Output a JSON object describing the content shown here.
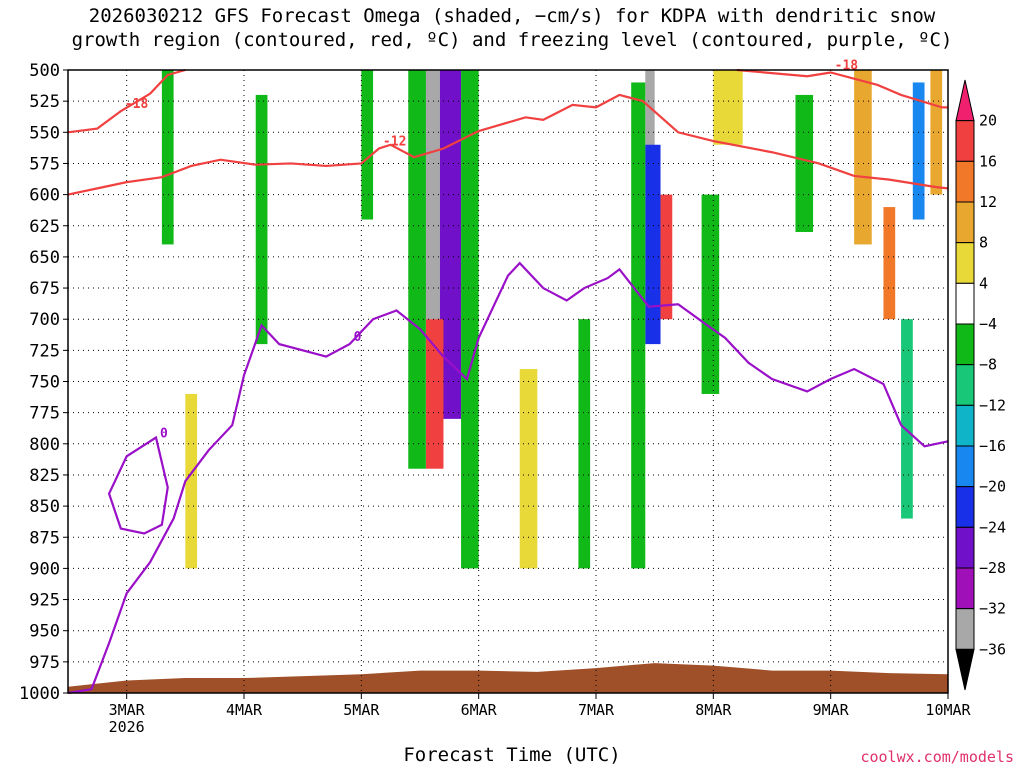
{
  "title": {
    "line1": "2026030212 GFS Forecast Omega (shaded, −cm/s) for KDPA with dendritic snow",
    "line2": "growth region (contoured, red, ºC) and freezing level (contoured, purple, ºC)"
  },
  "credit": "coolwx.com/models",
  "colors": {
    "dgz_contour": "#f04040",
    "freezing_contour": "#9a10c8",
    "terrain": "#a05028",
    "grid": "#000000"
  },
  "chart_data": {
    "type": "heatmap",
    "xlabel": "Forecast Time (UTC)",
    "ylabel": "",
    "x_range_days": [
      2.5,
      10.0
    ],
    "y_range_hpa": [
      500,
      1000
    ],
    "x_ticks": [
      {
        "x": 3,
        "label": "3MAR",
        "sublabel": "2026"
      },
      {
        "x": 4,
        "label": "4MAR",
        "sublabel": ""
      },
      {
        "x": 5,
        "label": "5MAR",
        "sublabel": ""
      },
      {
        "x": 6,
        "label": "6MAR",
        "sublabel": ""
      },
      {
        "x": 7,
        "label": "7MAR",
        "sublabel": ""
      },
      {
        "x": 8,
        "label": "8MAR",
        "sublabel": ""
      },
      {
        "x": 9,
        "label": "9MAR",
        "sublabel": ""
      },
      {
        "x": 10,
        "label": "10MAR",
        "sublabel": ""
      }
    ],
    "y_ticks": [
      "500",
      "525",
      "550",
      "575",
      "600",
      "625",
      "650",
      "675",
      "700",
      "725",
      "750",
      "775",
      "800",
      "825",
      "850",
      "875",
      "900",
      "925",
      "950",
      "975",
      "1000"
    ],
    "colorbar": {
      "levels": [
        "20",
        "16",
        "12",
        "8",
        "4",
        "−4",
        "−8",
        "−12",
        "−16",
        "−20",
        "−24",
        "−28",
        "−32",
        "−36"
      ],
      "colors": [
        "#f0206e",
        "#f04040",
        "#f07828",
        "#e8a830",
        "#e8d838",
        "#ffffff",
        "#10b818",
        "#18c878",
        "#10b4c8",
        "#1888f0",
        "#1830e8",
        "#7010c8",
        "#a010b8",
        "#a8a8a8",
        "#000000"
      ]
    },
    "contours": [
      {
        "label": "-18",
        "points": [
          [
            2.5,
            550
          ],
          [
            2.75,
            547
          ],
          [
            2.95,
            533
          ],
          [
            3.2,
            519
          ],
          [
            3.35,
            504
          ],
          [
            3.5,
            500
          ]
        ]
      },
      {
        "label": "-18",
        "points": [
          [
            8.2,
            500
          ],
          [
            8.8,
            505
          ],
          [
            9.0,
            502
          ],
          [
            9.4,
            512
          ],
          [
            9.6,
            520
          ],
          [
            9.95,
            530
          ],
          [
            10.0,
            530
          ]
        ]
      },
      {
        "label": "-12",
        "points": [
          [
            2.5,
            600
          ],
          [
            2.75,
            595
          ],
          [
            3.0,
            590
          ],
          [
            3.3,
            586
          ],
          [
            3.55,
            577
          ],
          [
            3.8,
            572
          ],
          [
            4.1,
            576
          ],
          [
            4.4,
            575
          ],
          [
            4.7,
            577
          ],
          [
            5.0,
            575
          ],
          [
            5.15,
            563
          ],
          [
            5.25,
            560
          ],
          [
            5.45,
            570
          ],
          [
            5.7,
            563
          ],
          [
            6.0,
            549
          ],
          [
            6.4,
            538
          ],
          [
            6.55,
            540
          ],
          [
            6.8,
            528
          ],
          [
            7.0,
            530
          ],
          [
            7.2,
            520
          ],
          [
            7.4,
            525
          ],
          [
            7.7,
            550
          ],
          [
            8.0,
            557
          ],
          [
            8.5,
            566
          ],
          [
            8.9,
            575
          ],
          [
            9.2,
            585
          ],
          [
            9.5,
            588
          ],
          [
            9.9,
            594
          ],
          [
            10.0,
            595
          ]
        ]
      },
      {
        "label": "0",
        "points": [
          [
            2.5,
            1000
          ],
          [
            2.7,
            997
          ],
          [
            2.85,
            960
          ],
          [
            3.0,
            920
          ],
          [
            3.2,
            895
          ],
          [
            3.4,
            860
          ],
          [
            3.5,
            830
          ],
          [
            3.7,
            805
          ],
          [
            3.9,
            785
          ],
          [
            4.0,
            745
          ],
          [
            4.15,
            705
          ],
          [
            4.3,
            720
          ],
          [
            4.5,
            725
          ],
          [
            4.7,
            730
          ],
          [
            4.9,
            720
          ],
          [
            5.1,
            700
          ],
          [
            5.3,
            693
          ],
          [
            5.5,
            708
          ],
          [
            5.7,
            730
          ],
          [
            5.9,
            748
          ],
          [
            6.0,
            715
          ],
          [
            6.25,
            665
          ],
          [
            6.35,
            655
          ],
          [
            6.55,
            675
          ],
          [
            6.75,
            685
          ],
          [
            6.9,
            675
          ],
          [
            7.1,
            667
          ],
          [
            7.2,
            660
          ],
          [
            7.45,
            690
          ],
          [
            7.7,
            688
          ],
          [
            7.95,
            705
          ],
          [
            8.1,
            715
          ],
          [
            8.3,
            735
          ],
          [
            8.5,
            748
          ],
          [
            8.8,
            758
          ],
          [
            9.0,
            748
          ],
          [
            9.2,
            740
          ],
          [
            9.45,
            752
          ],
          [
            9.6,
            785
          ],
          [
            9.8,
            802
          ],
          [
            10.0,
            798
          ]
        ]
      }
    ],
    "freezing_blob": {
      "label": "0",
      "points": [
        [
          3.0,
          810
        ],
        [
          3.25,
          795
        ],
        [
          3.35,
          835
        ],
        [
          3.3,
          865
        ],
        [
          3.15,
          872
        ],
        [
          2.95,
          868
        ],
        [
          2.85,
          840
        ]
      ]
    },
    "omega_cells": [
      {
        "x": [
          5.5,
          5.67
        ],
        "p": [
          500,
          700
        ],
        "level": "-36"
      },
      {
        "x": [
          5.67,
          5.85
        ],
        "p": [
          500,
          780
        ],
        "level": "-28"
      },
      {
        "x": [
          5.55,
          5.7
        ],
        "p": [
          700,
          820
        ],
        "level": "16"
      },
      {
        "x": [
          5.4,
          5.55
        ],
        "p": [
          500,
          820
        ],
        "level": "-8"
      },
      {
        "x": [
          5.85,
          6.0
        ],
        "p": [
          500,
          900
        ],
        "level": "-8"
      },
      {
        "x": [
          7.42,
          7.5
        ],
        "p": [
          500,
          580
        ],
        "level": "-36"
      },
      {
        "x": [
          7.42,
          7.55
        ],
        "p": [
          560,
          720
        ],
        "level": "-24"
      },
      {
        "x": [
          7.55,
          7.65
        ],
        "p": [
          600,
          700
        ],
        "level": "16"
      },
      {
        "x": [
          7.3,
          7.42
        ],
        "p": [
          510,
          900
        ],
        "level": "-8"
      },
      {
        "x": [
          8.7,
          8.85
        ],
        "p": [
          520,
          630
        ],
        "level": "-8"
      },
      {
        "x": [
          9.7,
          9.8
        ],
        "p": [
          510,
          620
        ],
        "level": "-20"
      },
      {
        "x": [
          9.6,
          9.7
        ],
        "p": [
          700,
          860
        ],
        "level": "-12"
      },
      {
        "x": [
          9.2,
          9.35
        ],
        "p": [
          500,
          640
        ],
        "level": "8"
      },
      {
        "x": [
          3.3,
          3.4
        ],
        "p": [
          500,
          640
        ],
        "level": "-8"
      },
      {
        "x": [
          4.1,
          4.2
        ],
        "p": [
          520,
          720
        ],
        "level": "-8"
      },
      {
        "x": [
          5.0,
          5.1
        ],
        "p": [
          500,
          620
        ],
        "level": "-8"
      },
      {
        "x": [
          6.85,
          6.95
        ],
        "p": [
          700,
          900
        ],
        "level": "-8"
      },
      {
        "x": [
          6.35,
          6.5
        ],
        "p": [
          740,
          900
        ],
        "level": "4"
      },
      {
        "x": [
          3.5,
          3.6
        ],
        "p": [
          760,
          900
        ],
        "level": "4"
      },
      {
        "x": [
          8.0,
          8.25
        ],
        "p": [
          500,
          560
        ],
        "level": "4"
      },
      {
        "x": [
          7.9,
          8.05
        ],
        "p": [
          600,
          760
        ],
        "level": "-8"
      },
      {
        "x": [
          9.45,
          9.55
        ],
        "p": [
          610,
          700
        ],
        "level": "12"
      },
      {
        "x": [
          9.85,
          9.95
        ],
        "p": [
          500,
          600
        ],
        "level": "8"
      }
    ],
    "terrain_hpa": [
      [
        2.5,
        995
      ],
      [
        3.0,
        990
      ],
      [
        3.5,
        988
      ],
      [
        4.0,
        988
      ],
      [
        5.0,
        985
      ],
      [
        5.5,
        982
      ],
      [
        6.0,
        982
      ],
      [
        6.5,
        983
      ],
      [
        7.0,
        980
      ],
      [
        7.5,
        976
      ],
      [
        8.0,
        978
      ],
      [
        8.5,
        982
      ],
      [
        9.0,
        982
      ],
      [
        9.5,
        984
      ],
      [
        10.0,
        985
      ]
    ]
  }
}
